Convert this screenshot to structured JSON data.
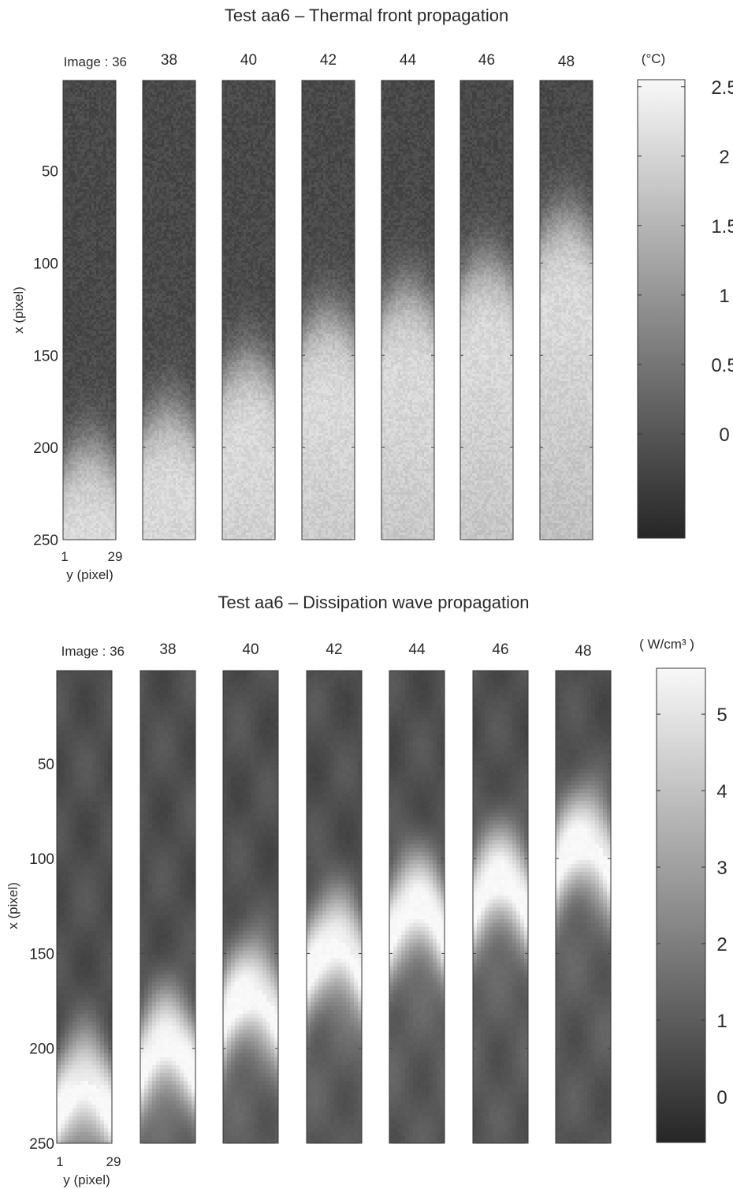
{
  "chart_data": [
    {
      "type": "heatmap",
      "title": "Test aa6 – Thermal front propagation",
      "image_label_prefix": "Image : ",
      "frames": [
        36,
        38,
        40,
        42,
        44,
        46,
        48
      ],
      "colorbar_unit": "(°C)",
      "colorbar_ticks": [
        {
          "value": 2.5,
          "label": "2.5"
        },
        {
          "value": 2,
          "label": "2"
        },
        {
          "value": 1.5,
          "label": "1.5"
        },
        {
          "value": 1,
          "label": "1"
        },
        {
          "value": 0.5,
          "label": "0.5"
        },
        {
          "value": 0,
          "label": "0"
        }
      ],
      "clim": [
        -0.75,
        2.55
      ],
      "xlabel": "x (pixel)",
      "ylabel": "y (pixel)",
      "x_ticks": [
        50,
        100,
        150,
        200,
        250
      ],
      "x_range": [
        1,
        250
      ],
      "y_ticks": [
        1,
        29
      ],
      "y_range": [
        1,
        29
      ],
      "grid": false,
      "profile": "front",
      "front_positions_x": [
        200,
        180,
        152,
        128,
        115,
        100,
        75
      ],
      "front_width": 40,
      "background_level": -0.2,
      "hot_level": 2.1
    },
    {
      "type": "heatmap",
      "title": "Test aa6 – Dissipation wave propagation",
      "image_label_prefix": "Image : ",
      "frames": [
        36,
        38,
        40,
        42,
        44,
        46,
        48
      ],
      "colorbar_unit": "( W/cm³ )",
      "colorbar_ticks": [
        {
          "value": 5,
          "label": "5"
        },
        {
          "value": 4,
          "label": "4"
        },
        {
          "value": 3,
          "label": "3"
        },
        {
          "value": 2,
          "label": "2"
        },
        {
          "value": 1,
          "label": "1"
        },
        {
          "value": 0,
          "label": "0"
        }
      ],
      "clim": [
        -0.6,
        5.6
      ],
      "xlabel": "x (pixel)",
      "ylabel": "y (pixel)",
      "x_ticks": [
        50,
        100,
        150,
        200,
        250
      ],
      "x_range": [
        1,
        250
      ],
      "y_ticks": [
        1,
        29
      ],
      "y_range": [
        1,
        29
      ],
      "grid": false,
      "profile": "wave",
      "wave_center_x": [
        218,
        195,
        168,
        143,
        122,
        108,
        88
      ],
      "wave_width": 18,
      "peak_level": 5.5,
      "background_level": 0.6
    }
  ]
}
